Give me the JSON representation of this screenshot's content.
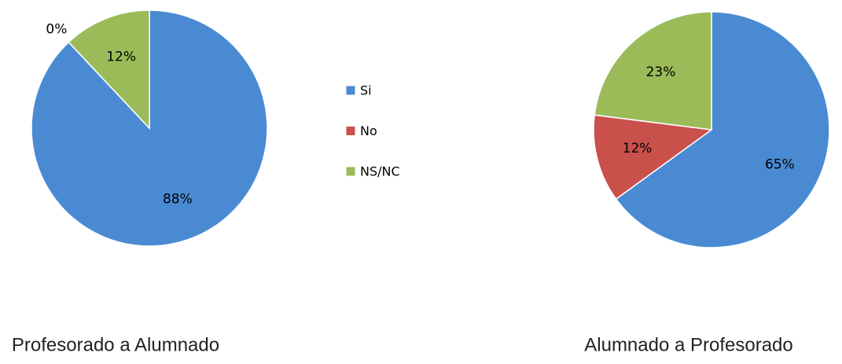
{
  "chart_data": [
    {
      "type": "pie",
      "title": "Profesorado a Alumnado",
      "categories": [
        "Si",
        "No",
        "NS/NC"
      ],
      "colors": [
        "#4a8ad3",
        "#c9504b",
        "#9bbb59"
      ],
      "values": [
        88,
        0,
        12
      ],
      "value_labels": [
        "88%",
        "0%",
        "12%"
      ]
    },
    {
      "type": "pie",
      "title": "Alumnado a Profesorado",
      "values": [
        65,
        12,
        23
      ],
      "value_labels": [
        "65%",
        "12%",
        "23%"
      ]
    }
  ]
}
